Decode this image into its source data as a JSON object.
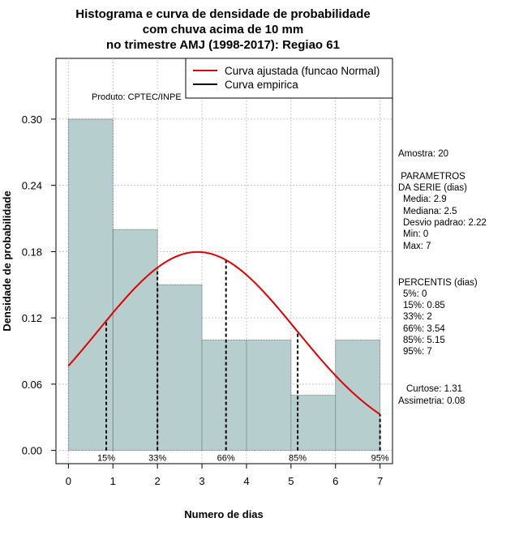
{
  "chart_data": {
    "type": "bar",
    "title_lines": [
      "Histograma e curva de densidade de probabilidade",
      "com chuva acima de 10 mm",
      "no trimestre AMJ (1998-2017): Regiao 61"
    ],
    "xlabel": "Numero de dias",
    "ylabel": "Densidade de probabilidade",
    "xlim": [
      -0.28,
      7.28
    ],
    "ylim": [
      -0.012,
      0.355
    ],
    "grid": true,
    "x_ticks": [
      "0",
      "1",
      "2",
      "3",
      "4",
      "5",
      "6",
      "7"
    ],
    "y_ticks": [
      "0.00",
      "0.06",
      "0.12",
      "0.18",
      "0.24",
      "0.30"
    ],
    "bins": [
      {
        "from": 0,
        "to": 1,
        "density": 0.3
      },
      {
        "from": 1,
        "to": 2,
        "density": 0.2
      },
      {
        "from": 2,
        "to": 3,
        "density": 0.15
      },
      {
        "from": 3,
        "to": 4,
        "density": 0.1
      },
      {
        "from": 4,
        "to": 5,
        "density": 0.1
      },
      {
        "from": 5,
        "to": 6,
        "density": 0.05
      },
      {
        "from": 6,
        "to": 7,
        "density": 0.1
      }
    ],
    "fitted_curve": {
      "distribution": "Normal",
      "mean": 2.9,
      "sd": 2.22,
      "color": "#e00000"
    },
    "percentile_lines": [
      {
        "label": "15%",
        "x": 0.85
      },
      {
        "label": "33%",
        "x": 2
      },
      {
        "label": "66%",
        "x": 3.54
      },
      {
        "label": "85%",
        "x": 5.15
      },
      {
        "label": "95%",
        "x": 7
      }
    ],
    "legend": {
      "position": "top-right",
      "entries": [
        {
          "label": "Curva ajustada (funcao Normal)",
          "color": "#e00000"
        },
        {
          "label": "Curva empirica",
          "color": "#000000"
        }
      ]
    },
    "product_label": "Produto: CPTEC/INPE",
    "bar_color": "#b6cece"
  },
  "side_panel": {
    "sample": "Amostra: 20",
    "params_title": [
      " PARAMETROS",
      "DA SERIE (dias)"
    ],
    "params": [
      "Media: 2.9",
      "Mediana: 2.5",
      "Desvio padrao: 2.22",
      "Min: 0",
      "Max: 7"
    ],
    "percentiles_title": "PERCENTIS (dias)",
    "percentiles": [
      "5%: 0",
      "15%: 0.85",
      "33%: 2",
      "66%: 3.54",
      "85%: 5.15",
      "95%: 7"
    ],
    "kurtosis": "Curtose: 1.31",
    "skewness": "Assimetria: 0.08"
  }
}
